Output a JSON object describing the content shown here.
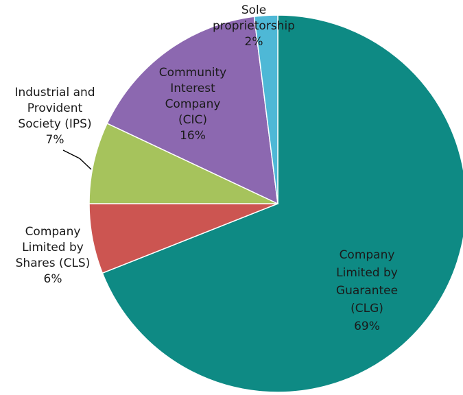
{
  "chart_data": {
    "type": "pie",
    "title": "",
    "slices": [
      {
        "label": "Company Limited by Guarantee (CLG)",
        "pct": "69%",
        "value": 69,
        "color": "#0e8a84",
        "label_lines": [
          "Company",
          "Limited by",
          "Guarantee",
          "(CLG)",
          "69%"
        ],
        "label_color": "#1a1a1a"
      },
      {
        "label": "Company Limited by Shares (CLS)",
        "pct": "6%",
        "value": 6,
        "color": "#cc5551",
        "label_lines": [
          "Company",
          "Limited by",
          "Shares (CLS)",
          "6%"
        ],
        "label_color": "#1a1a1a"
      },
      {
        "label": "Industrial and Provident Society (IPS)",
        "pct": "7%",
        "value": 7,
        "color": "#a6c35c",
        "label_lines": [
          "Industrial and",
          "Provident",
          "Society (IPS)",
          "7%"
        ],
        "label_color": "#1a1a1a"
      },
      {
        "label": "Community Interest Company (CIC)",
        "pct": "16%",
        "value": 16,
        "color": "#8c68b0",
        "label_lines": [
          "Community",
          "Interest",
          "Company",
          "(CIC)",
          "16%"
        ],
        "label_color": "#1a1a1a"
      },
      {
        "label": "Sole proprietorship",
        "pct": "2%",
        "value": 2,
        "color": "#4eb8d6",
        "label_lines": [
          "Sole",
          "proprietorship",
          "2%"
        ],
        "label_color": "#1a1a1a"
      }
    ]
  }
}
